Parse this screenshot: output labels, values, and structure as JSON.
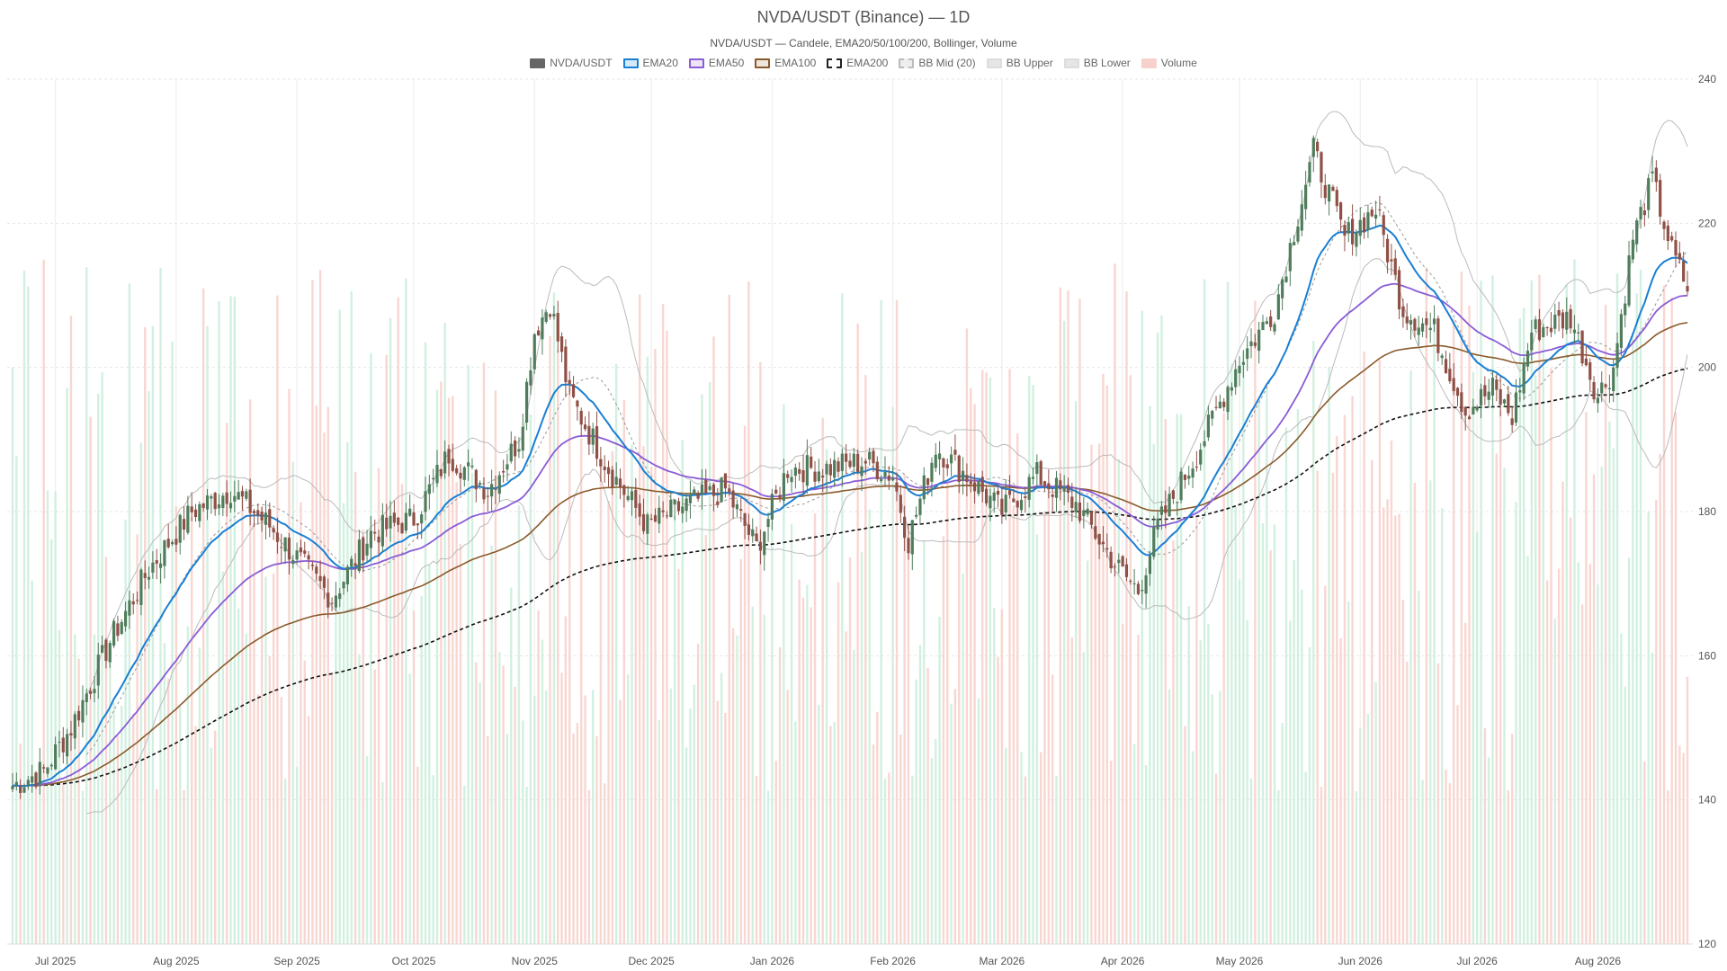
{
  "title": "NVDA/USDT (Binance) — 1D",
  "subtitle": "NVDA/USDT — Candele, EMA20/50/100/200, Bollinger, Volume",
  "legend": [
    {
      "label": "NVDA/USDT",
      "fill": "#666666",
      "border": "#666666",
      "dash": false
    },
    {
      "label": "EMA20",
      "fill": "#d6e9f7",
      "border": "#1a7fd4",
      "dash": false
    },
    {
      "label": "EMA50",
      "fill": "#ece4f7",
      "border": "#8a5cd6",
      "dash": false
    },
    {
      "label": "EMA100",
      "fill": "#efe6dc",
      "border": "#8a5a2b",
      "dash": false
    },
    {
      "label": "EMA200",
      "fill": "#ffffff",
      "border": "#222222",
      "dash": true
    },
    {
      "label": "BB Mid (20)",
      "fill": "#eeeeee",
      "border": "#bbbbbb",
      "dash": true
    },
    {
      "label": "BB Upper",
      "fill": "#e6e6e6",
      "border": "#dddddd",
      "dash": false
    },
    {
      "label": "BB Lower",
      "fill": "#e6e6e6",
      "border": "#dddddd",
      "dash": false
    },
    {
      "label": "Volume",
      "fill": "#f7d2cc",
      "border": "#f7d2cc",
      "dash": false
    }
  ],
  "chart_data": {
    "type": "candlestick",
    "title": "NVDA/USDT (Binance) — 1D",
    "subtitle": "NVDA/USDT — Candele, EMA20/50/100/200, Bollinger, Volume",
    "x_range": [
      "2025-06-20",
      "2026-08-24"
    ],
    "ylim": [
      120,
      240
    ],
    "y_ticks": [
      120,
      140,
      160,
      180,
      200,
      220,
      240
    ],
    "x_ticks": [
      {
        "label": "Jul 2025",
        "date": "2025-07-01"
      },
      {
        "label": "Aug 2025",
        "date": "2025-08-01"
      },
      {
        "label": "Sep 2025",
        "date": "2025-09-01"
      },
      {
        "label": "Oct 2025",
        "date": "2025-10-01"
      },
      {
        "label": "Nov 2025",
        "date": "2025-11-01"
      },
      {
        "label": "Dec 2025",
        "date": "2025-12-01"
      },
      {
        "label": "Jan 2026",
        "date": "2026-01-01"
      },
      {
        "label": "Feb 2026",
        "date": "2026-02-01"
      },
      {
        "label": "Mar 2026",
        "date": "2026-03-01"
      },
      {
        "label": "Apr 2026",
        "date": "2026-04-01"
      },
      {
        "label": "May 2026",
        "date": "2026-05-01"
      },
      {
        "label": "Jun 2026",
        "date": "2026-06-01"
      },
      {
        "label": "Jul 2026",
        "date": "2026-07-01"
      },
      {
        "label": "Aug 2026",
        "date": "2026-08-01"
      }
    ],
    "grid": true,
    "legend_position": "top-center",
    "close_anchors": [
      {
        "date": "2025-06-20",
        "close": 142
      },
      {
        "date": "2025-06-28",
        "close": 144
      },
      {
        "date": "2025-07-05",
        "close": 150
      },
      {
        "date": "2025-07-15",
        "close": 162
      },
      {
        "date": "2025-07-25",
        "close": 172
      },
      {
        "date": "2025-08-05",
        "close": 180
      },
      {
        "date": "2025-08-15",
        "close": 183
      },
      {
        "date": "2025-08-25",
        "close": 178
      },
      {
        "date": "2025-09-05",
        "close": 171
      },
      {
        "date": "2025-09-10",
        "close": 168
      },
      {
        "date": "2025-09-20",
        "close": 177
      },
      {
        "date": "2025-10-01",
        "close": 179
      },
      {
        "date": "2025-10-10",
        "close": 188
      },
      {
        "date": "2025-10-20",
        "close": 183
      },
      {
        "date": "2025-10-28",
        "close": 190
      },
      {
        "date": "2025-11-01",
        "close": 205
      },
      {
        "date": "2025-11-05",
        "close": 209
      },
      {
        "date": "2025-11-10",
        "close": 196
      },
      {
        "date": "2025-11-20",
        "close": 186
      },
      {
        "date": "2025-11-30",
        "close": 178
      },
      {
        "date": "2025-12-10",
        "close": 181
      },
      {
        "date": "2025-12-20",
        "close": 183
      },
      {
        "date": "2025-12-28",
        "close": 175
      },
      {
        "date": "2026-01-05",
        "close": 186
      },
      {
        "date": "2026-01-15",
        "close": 186
      },
      {
        "date": "2026-01-25",
        "close": 187
      },
      {
        "date": "2026-02-01",
        "close": 185
      },
      {
        "date": "2026-02-05",
        "close": 176
      },
      {
        "date": "2026-02-12",
        "close": 189
      },
      {
        "date": "2026-02-20",
        "close": 185
      },
      {
        "date": "2026-03-01",
        "close": 180
      },
      {
        "date": "2026-03-10",
        "close": 185
      },
      {
        "date": "2026-03-20",
        "close": 181
      },
      {
        "date": "2026-03-31",
        "close": 172
      },
      {
        "date": "2026-04-05",
        "close": 169
      },
      {
        "date": "2026-04-10",
        "close": 178
      },
      {
        "date": "2026-04-20",
        "close": 188
      },
      {
        "date": "2026-05-01",
        "close": 201
      },
      {
        "date": "2026-05-10",
        "close": 208
      },
      {
        "date": "2026-05-20",
        "close": 230
      },
      {
        "date": "2026-05-28",
        "close": 218
      },
      {
        "date": "2026-06-05",
        "close": 222
      },
      {
        "date": "2026-06-12",
        "close": 208
      },
      {
        "date": "2026-06-20",
        "close": 205
      },
      {
        "date": "2026-06-28",
        "close": 194
      },
      {
        "date": "2026-07-05",
        "close": 197
      },
      {
        "date": "2026-07-10",
        "close": 193
      },
      {
        "date": "2026-07-15",
        "close": 205
      },
      {
        "date": "2026-07-25",
        "close": 207
      },
      {
        "date": "2026-08-01",
        "close": 196
      },
      {
        "date": "2026-08-05",
        "close": 200
      },
      {
        "date": "2026-08-10",
        "close": 218
      },
      {
        "date": "2026-08-15",
        "close": 226
      },
      {
        "date": "2026-08-20",
        "close": 216
      },
      {
        "date": "2026-08-24",
        "close": 211
      }
    ],
    "overlays": [
      "EMA20",
      "EMA50",
      "EMA100",
      "EMA200",
      "BB Mid (20)",
      "BB Upper",
      "BB Lower",
      "Volume"
    ],
    "colors": {
      "up_candle": "#4f7d5c",
      "down_candle": "#8f5046",
      "ema20": "#1a7fd4",
      "ema50": "#8a5cd6",
      "ema100": "#8a5a2b",
      "ema200": "#111111",
      "bb": "#bbbbbb",
      "volume_up": "#cdeedd",
      "volume_down": "#f7d2cc"
    }
  }
}
